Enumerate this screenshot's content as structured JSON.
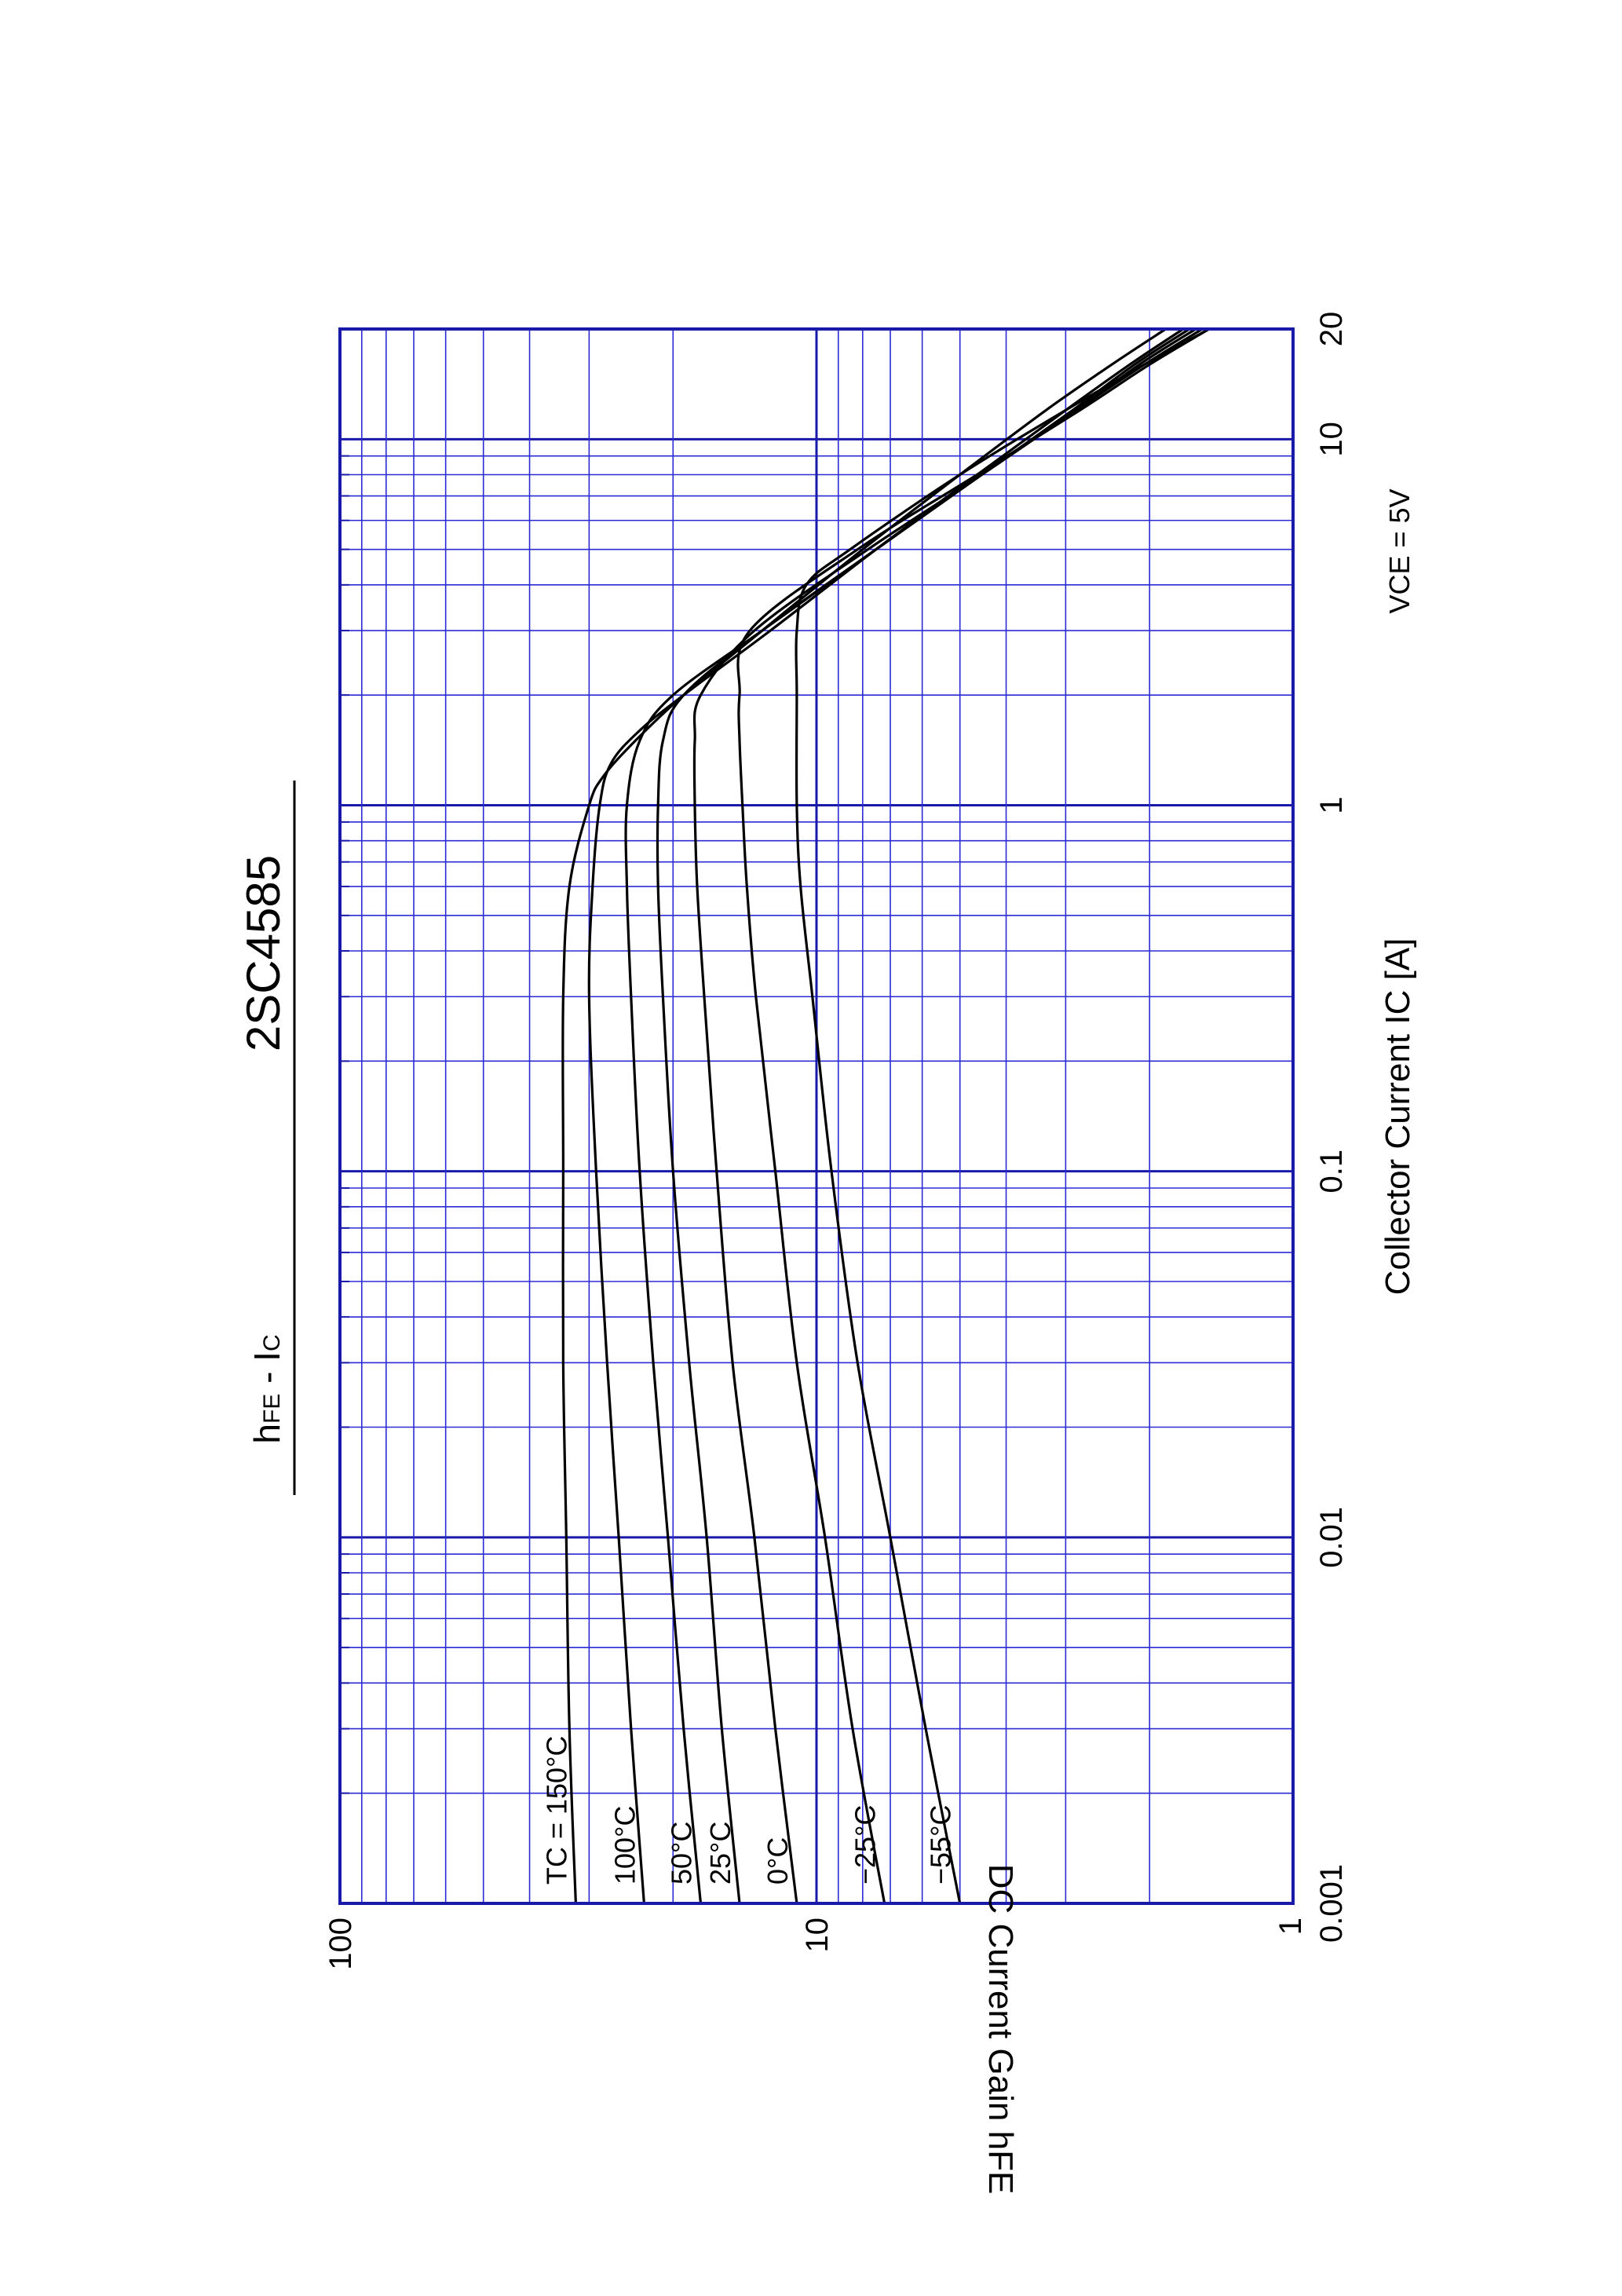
{
  "page": {
    "title": "2SC4585",
    "subtitle": "hFE - IC"
  },
  "chart_data": {
    "type": "line",
    "title": "2SC4585",
    "subtitle": "hFE - IC",
    "xlabel": "Collector Current  IC  [A]",
    "ylabel": "DC Current Gain  hFE",
    "x_scale": "log",
    "y_scale": "log",
    "xlim": [
      0.001,
      20
    ],
    "ylim": [
      1,
      100
    ],
    "x_ticks": [
      {
        "value": 0.001,
        "label": "0.001"
      },
      {
        "value": 0.01,
        "label": "0.01"
      },
      {
        "value": 0.1,
        "label": "0.1"
      },
      {
        "value": 1,
        "label": "1"
      },
      {
        "value": 10,
        "label": "10"
      },
      {
        "value": 20,
        "label": "20"
      }
    ],
    "y_ticks": [
      {
        "value": 1,
        "label": "1"
      },
      {
        "value": 10,
        "label": "10"
      },
      {
        "value": 100,
        "label": "100"
      }
    ],
    "grid": true,
    "grid_color": "#2b2bd6",
    "frame_color": "#1a1aaa",
    "line_color": "#000000",
    "annotation": "VCE = 5V",
    "series": [
      {
        "name": "TC = 150°C",
        "x": [
          0.001,
          0.003,
          0.01,
          0.03,
          0.1,
          0.3,
          0.6,
          1.0,
          1.2,
          1.5,
          2.0,
          3.0,
          5.0,
          8.0,
          12.0,
          16.0,
          20.0
        ],
        "y": [
          32,
          33,
          33.5,
          34,
          34,
          34,
          33,
          30,
          28,
          24,
          19,
          13,
          8,
          5,
          3.3,
          2.4,
          1.85
        ]
      },
      {
        "name": "100°C",
        "x": [
          0.001,
          0.003,
          0.01,
          0.03,
          0.1,
          0.3,
          0.6,
          1.0,
          1.3,
          1.6,
          2.0,
          3.0,
          5.0,
          8.0,
          12.0,
          16.0,
          20.0
        ],
        "y": [
          23,
          24.5,
          26,
          27.5,
          29,
          30,
          29.5,
          28.5,
          27,
          23.5,
          19,
          12.5,
          7.5,
          4.6,
          3.0,
          2.2,
          1.7
        ]
      },
      {
        "name": "50°C",
        "x": [
          0.001,
          0.003,
          0.01,
          0.03,
          0.1,
          0.3,
          0.6,
          1.0,
          1.5,
          2.0,
          3.0,
          5.0,
          8.0,
          12.0,
          16.0,
          20.0
        ],
        "y": [
          17.5,
          19,
          20.5,
          22,
          23.5,
          24.5,
          25,
          25,
          23.5,
          20,
          13,
          7.5,
          4.5,
          2.9,
          2.15,
          1.65
        ]
      },
      {
        "name": "25°C",
        "x": [
          0.001,
          0.003,
          0.01,
          0.03,
          0.1,
          0.3,
          0.6,
          1.0,
          1.5,
          2.0,
          3.0,
          5.0,
          8.0,
          12.0,
          16.0,
          20.0
        ],
        "y": [
          14.5,
          15.8,
          17,
          18.5,
          20,
          21,
          21.5,
          21.5,
          21,
          19,
          13,
          7.5,
          4.5,
          2.85,
          2.1,
          1.6
        ]
      },
      {
        "name": "0°C",
        "x": [
          0.001,
          0.003,
          0.01,
          0.03,
          0.1,
          0.3,
          0.6,
          1.0,
          1.5,
          2.0,
          3.0,
          5.0,
          8.0,
          12.0,
          16.0,
          20.0
        ],
        "y": [
          11,
          12.2,
          13.5,
          15,
          16.2,
          17.2,
          17.8,
          18,
          18,
          17.5,
          13.5,
          7.8,
          4.5,
          2.85,
          2.05,
          1.55
        ]
      },
      {
        "name": "−25°C",
        "x": [
          0.001,
          0.003,
          0.01,
          0.03,
          0.1,
          0.3,
          0.6,
          1.0,
          1.5,
          2.0,
          3.0,
          5.0,
          8.0,
          12.0,
          16.0,
          20.0
        ],
        "y": [
          7.2,
          8.4,
          9.6,
          11,
          12.2,
          13.4,
          14,
          14.3,
          14.5,
          14.5,
          13.8,
          8.2,
          4.6,
          2.8,
          2.0,
          1.5
        ]
      },
      {
        "name": "−55°C",
        "x": [
          0.001,
          0.003,
          0.01,
          0.03,
          0.1,
          0.3,
          0.6,
          1.0,
          2.0,
          3.0,
          4.0,
          5.0,
          8.0,
          12.0,
          16.0,
          20.0
        ],
        "y": [
          5.0,
          5.9,
          7.0,
          8.2,
          9.3,
          10.2,
          10.8,
          11,
          11,
          11,
          10.5,
          8.5,
          5.0,
          3.0,
          2.05,
          1.5
        ]
      }
    ]
  }
}
